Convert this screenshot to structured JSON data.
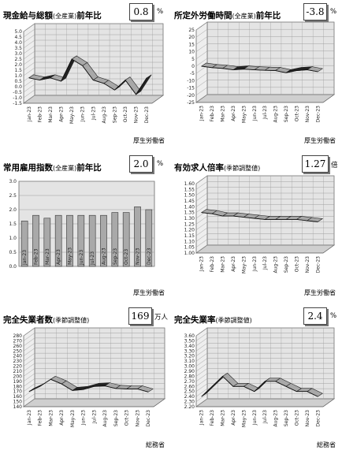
{
  "panels": [
    {
      "title": "現金給与総額",
      "subtitle": "(全産業)",
      "suffix": "前年比",
      "value": "0.8",
      "unit": "%",
      "source": "厚生労働省"
    },
    {
      "title": "所定外労働時間",
      "subtitle": "(全産業)",
      "suffix": "前年比",
      "value": "-3.8",
      "unit": "%",
      "source": "厚生労働省"
    },
    {
      "title": "常用雇用指数",
      "subtitle": "(全産業)",
      "suffix": "前年比",
      "value": "2.0",
      "unit": "%",
      "source": "厚生労働省"
    },
    {
      "title": "有効求人倍率",
      "subtitle": "(季節調整値)",
      "suffix": "",
      "value": "1.27",
      "unit": "倍",
      "source": "厚生労働省"
    },
    {
      "title": "完全失業者数",
      "subtitle": "(季節調整値)",
      "suffix": "",
      "value": "169",
      "unit": "万人",
      "source": "総務省"
    },
    {
      "title": "完全失業率",
      "subtitle": "(季節調整値)",
      "suffix": "",
      "value": "2.4",
      "unit": "%",
      "source": "総務省"
    }
  ],
  "chart_data": [
    {
      "type": "area",
      "title": "現金給与総額(全産業)前年比",
      "categories": [
        "Jan-23",
        "Feb-23",
        "Mar-23",
        "Apr-23",
        "May-23",
        "Jun-23",
        "Jul-23",
        "Aug-23",
        "Sep-23",
        "Oct-23",
        "Nov-23",
        "Dec-23"
      ],
      "values": [
        0.8,
        0.6,
        0.8,
        0.5,
        2.5,
        1.9,
        0.6,
        0.3,
        -0.3,
        0.6,
        -0.7,
        0.8
      ],
      "ylim": [
        -1.5,
        5.0
      ],
      "yticks": [
        -1.5,
        -1.0,
        -0.5,
        0.0,
        0.5,
        1.0,
        1.5,
        2.0,
        2.5,
        3.0,
        3.5,
        4.0,
        4.5,
        5.0
      ]
    },
    {
      "type": "area",
      "title": "所定外労働時間(全産業)前年比",
      "categories": [
        "Jan-23",
        "Feb-23",
        "Mar-23",
        "Apr-23",
        "May-23",
        "Jun-23",
        "Jul-23",
        "Aug-23",
        "Sep-23",
        "Oct-23",
        "Nov-23",
        "Dec-23"
      ],
      "values": [
        0.0,
        -1.0,
        -1.5,
        -2.5,
        -2.0,
        -2.5,
        -2.8,
        -3.0,
        -4.5,
        -3.0,
        -2.5,
        -3.8
      ],
      "ylim": [
        -25,
        25
      ],
      "yticks": [
        -25,
        -20,
        -15,
        -10,
        -5,
        0,
        5,
        10,
        15,
        20,
        25
      ]
    },
    {
      "type": "bar",
      "title": "常用雇用指数(全産業)前年比",
      "categories": [
        "Jan-23",
        "Feb-23",
        "Mar-23",
        "Apr-23",
        "May-23",
        "Jun-23",
        "Jul-23",
        "Aug-23",
        "Sep-23",
        "Oct-23",
        "Nov-23",
        "Dec-23"
      ],
      "values": [
        1.6,
        1.8,
        1.7,
        1.8,
        1.8,
        1.8,
        1.8,
        1.8,
        1.9,
        1.9,
        2.1,
        2.0
      ],
      "ylim": [
        0.0,
        3.0
      ],
      "yticks": [
        0.0,
        0.5,
        1.0,
        1.5,
        2.0,
        2.5,
        3.0
      ]
    },
    {
      "type": "area",
      "title": "有効求人倍率(季節調整値)",
      "categories": [
        "Jan-23",
        "Feb-23",
        "Mar-23",
        "Apr-23",
        "May-23",
        "Jun-23",
        "Jul-23",
        "Aug-23",
        "Sep-23",
        "Oct-23",
        "Nov-23",
        "Dec-23"
      ],
      "values": [
        1.35,
        1.34,
        1.32,
        1.32,
        1.31,
        1.3,
        1.29,
        1.29,
        1.29,
        1.29,
        1.28,
        1.27
      ],
      "ylim": [
        1.0,
        1.6
      ],
      "yticks": [
        1.0,
        1.05,
        1.1,
        1.15,
        1.2,
        1.25,
        1.3,
        1.35,
        1.4,
        1.45,
        1.5,
        1.55,
        1.6
      ]
    },
    {
      "type": "area",
      "title": "完全失業者数(季節調整値)",
      "unit": "万人",
      "categories": [
        "Jan-23",
        "Feb-23",
        "Mar-23",
        "Apr-23",
        "May-23",
        "Jun-23",
        "Jul-23",
        "Aug-23",
        "Sep-23",
        "Oct-23",
        "Nov-23",
        "Dec-23"
      ],
      "values": [
        170,
        180,
        194,
        185,
        172,
        174,
        180,
        181,
        176,
        175,
        175,
        169
      ],
      "ylim": [
        140,
        280
      ],
      "yticks": [
        140,
        150,
        160,
        170,
        180,
        190,
        200,
        210,
        220,
        230,
        240,
        250,
        260,
        270,
        280
      ]
    },
    {
      "type": "area",
      "title": "完全失業率(季節調整値)",
      "categories": [
        "Jan-23",
        "Feb-23",
        "Mar-23",
        "Apr-23",
        "May-23",
        "Jun-23",
        "Jul-23",
        "Aug-23",
        "Sep-23",
        "Oct-23",
        "Nov-23",
        "Dec-23"
      ],
      "values": [
        2.4,
        2.6,
        2.8,
        2.6,
        2.6,
        2.5,
        2.7,
        2.7,
        2.6,
        2.5,
        2.5,
        2.4
      ],
      "ylim": [
        2.2,
        3.6
      ],
      "yticks": [
        2.2,
        2.3,
        2.4,
        2.5,
        2.6,
        2.7,
        2.8,
        2.9,
        3.0,
        3.1,
        3.2,
        3.3,
        3.4,
        3.5,
        3.6
      ]
    }
  ],
  "colors": {
    "wall": "#e4e4e4",
    "floor": "#cfcfcf",
    "ribbon": "#a8a8a8",
    "ribbon_top": "#d8d8d8",
    "ribbon_dark": "#222222",
    "bar": "#a9a9a9",
    "grid": "#9a9a9a"
  }
}
